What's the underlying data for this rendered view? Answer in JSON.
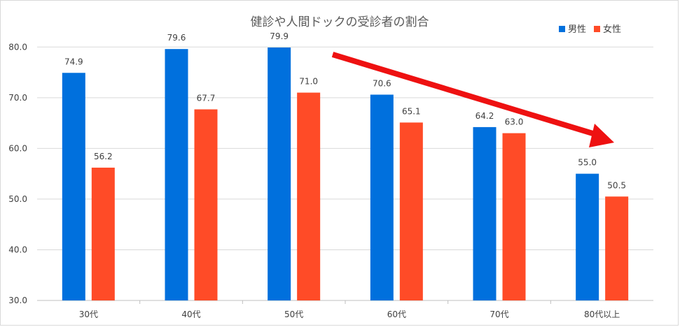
{
  "chart_data": {
    "type": "bar",
    "title": "健診や人間ドックの受診者の割合",
    "categories": [
      "30代",
      "40代",
      "50代",
      "60代",
      "70代",
      "80代以上"
    ],
    "series": [
      {
        "name": "男性",
        "color": "#0070DD",
        "values": [
          74.9,
          79.6,
          79.9,
          70.6,
          64.2,
          55.0
        ],
        "labels": [
          "74.9",
          "79.6",
          "79.9",
          "70.6",
          "64.2",
          "55.0"
        ]
      },
      {
        "name": "女性",
        "color": "#FF4B27",
        "values": [
          56.2,
          67.7,
          71.0,
          65.1,
          63.0,
          50.5
        ],
        "labels": [
          "56.2",
          "67.7",
          "71.0",
          "65.1",
          "63.0",
          "50.5"
        ]
      }
    ],
    "yticks": [
      "30.0",
      "40.0",
      "50.0",
      "60.0",
      "70.0",
      "80.0"
    ],
    "ylim": [
      30,
      85
    ],
    "grid": true,
    "legend_position": "top-right",
    "annotation": {
      "type": "arrow",
      "color": "#EE1111",
      "direction": "down-right"
    },
    "xlabel": "",
    "ylabel": ""
  }
}
